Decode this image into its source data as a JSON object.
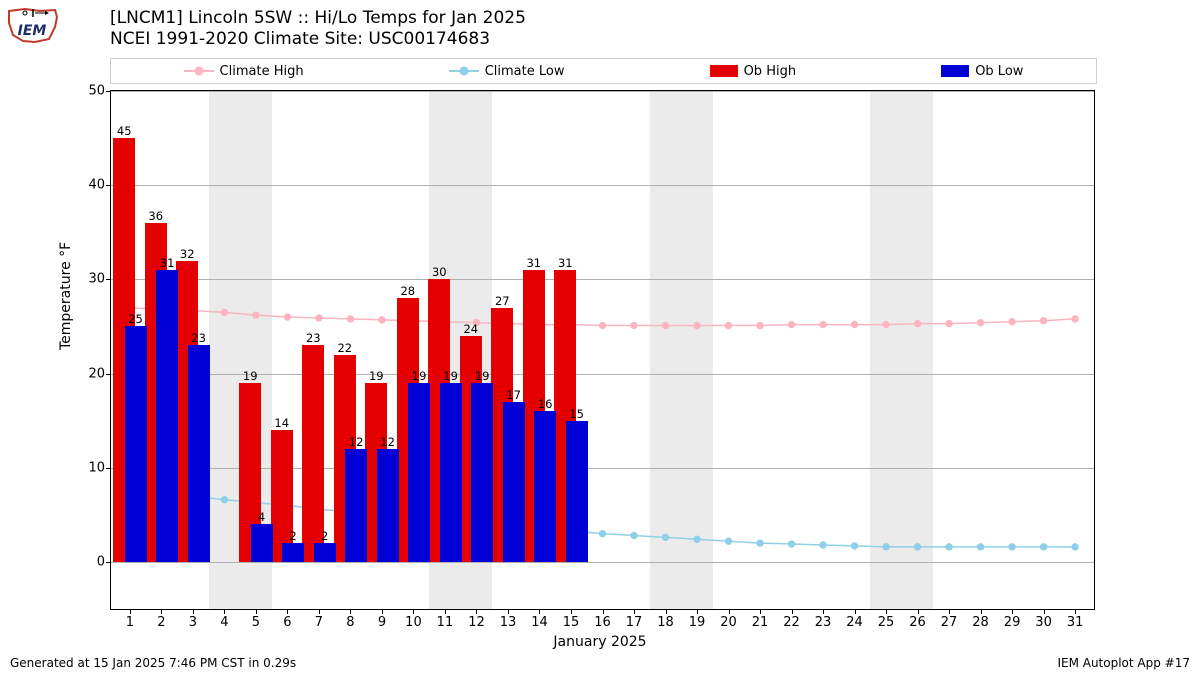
{
  "logo": {
    "text": "IEM",
    "outline_color": "#c0392b",
    "text_color": "#1f2e6e"
  },
  "title_line1": "[LNCM1] Lincoln 5SW :: Hi/Lo Temps for Jan 2025",
  "title_line2": "NCEI 1991-2020 Climate Site: USC00174683",
  "legend": {
    "climate_high": {
      "label": "Climate High",
      "color": "#fcb4c0"
    },
    "climate_low": {
      "label": "Climate Low",
      "color": "#8fd0e8"
    },
    "ob_high": {
      "label": "Ob High",
      "color": "#e40000"
    },
    "ob_low": {
      "label": "Ob Low",
      "color": "#0000d6"
    }
  },
  "chart": {
    "type": "combo-bar-line",
    "ylim": [
      -5,
      50
    ],
    "yticks": [
      0,
      10,
      20,
      30,
      40,
      50
    ],
    "ylabel": "Temperature °F",
    "xlabel": "January 2025",
    "days": [
      1,
      2,
      3,
      4,
      5,
      6,
      7,
      8,
      9,
      10,
      11,
      12,
      13,
      14,
      15,
      16,
      17,
      18,
      19,
      20,
      21,
      22,
      23,
      24,
      25,
      26,
      27,
      28,
      29,
      30,
      31
    ],
    "x_domain": [
      0.4,
      31.6
    ],
    "bar_half_width_days": 0.35,
    "weekend_bands": [
      [
        3.5,
        5.5
      ],
      [
        10.5,
        12.5
      ],
      [
        17.5,
        19.5
      ],
      [
        24.5,
        26.5
      ]
    ],
    "weekend_color": "#ebebeb",
    "grid_color": "#b0b0b0",
    "ob_high": [
      45,
      36,
      32,
      null,
      19,
      14,
      23,
      22,
      19,
      28,
      30,
      24,
      27,
      31,
      31
    ],
    "ob_low": [
      25,
      31,
      23,
      null,
      4,
      2,
      2,
      12,
      12,
      19,
      19,
      19,
      17,
      16,
      15
    ],
    "climate_high": [
      27.0,
      26.8,
      26.7,
      26.5,
      26.2,
      26.0,
      25.9,
      25.8,
      25.7,
      25.6,
      25.5,
      25.4,
      25.3,
      25.2,
      25.2,
      25.1,
      25.1,
      25.1,
      25.1,
      25.1,
      25.1,
      25.2,
      25.2,
      25.2,
      25.2,
      25.3,
      25.3,
      25.4,
      25.5,
      25.6,
      25.8
    ],
    "climate_low": [
      7.8,
      7.4,
      7.0,
      6.6,
      6.3,
      6.0,
      5.6,
      5.3,
      5.0,
      4.7,
      4.4,
      4.1,
      3.8,
      3.5,
      3.3,
      3.0,
      2.8,
      2.6,
      2.4,
      2.2,
      2.0,
      1.9,
      1.8,
      1.7,
      1.6,
      1.6,
      1.6,
      1.6,
      1.6,
      1.6,
      1.6
    ],
    "colors": {
      "ob_high": "#e40000",
      "ob_low": "#0000d6",
      "climate_high": "#fcb4c0",
      "climate_low": "#8fd0e8"
    },
    "label_fontsize": 11.5,
    "marker_radius": 3.2
  },
  "footer_left": "Generated at 15 Jan 2025 7:46 PM CST in 0.29s",
  "footer_right": "IEM Autoplot App #17"
}
